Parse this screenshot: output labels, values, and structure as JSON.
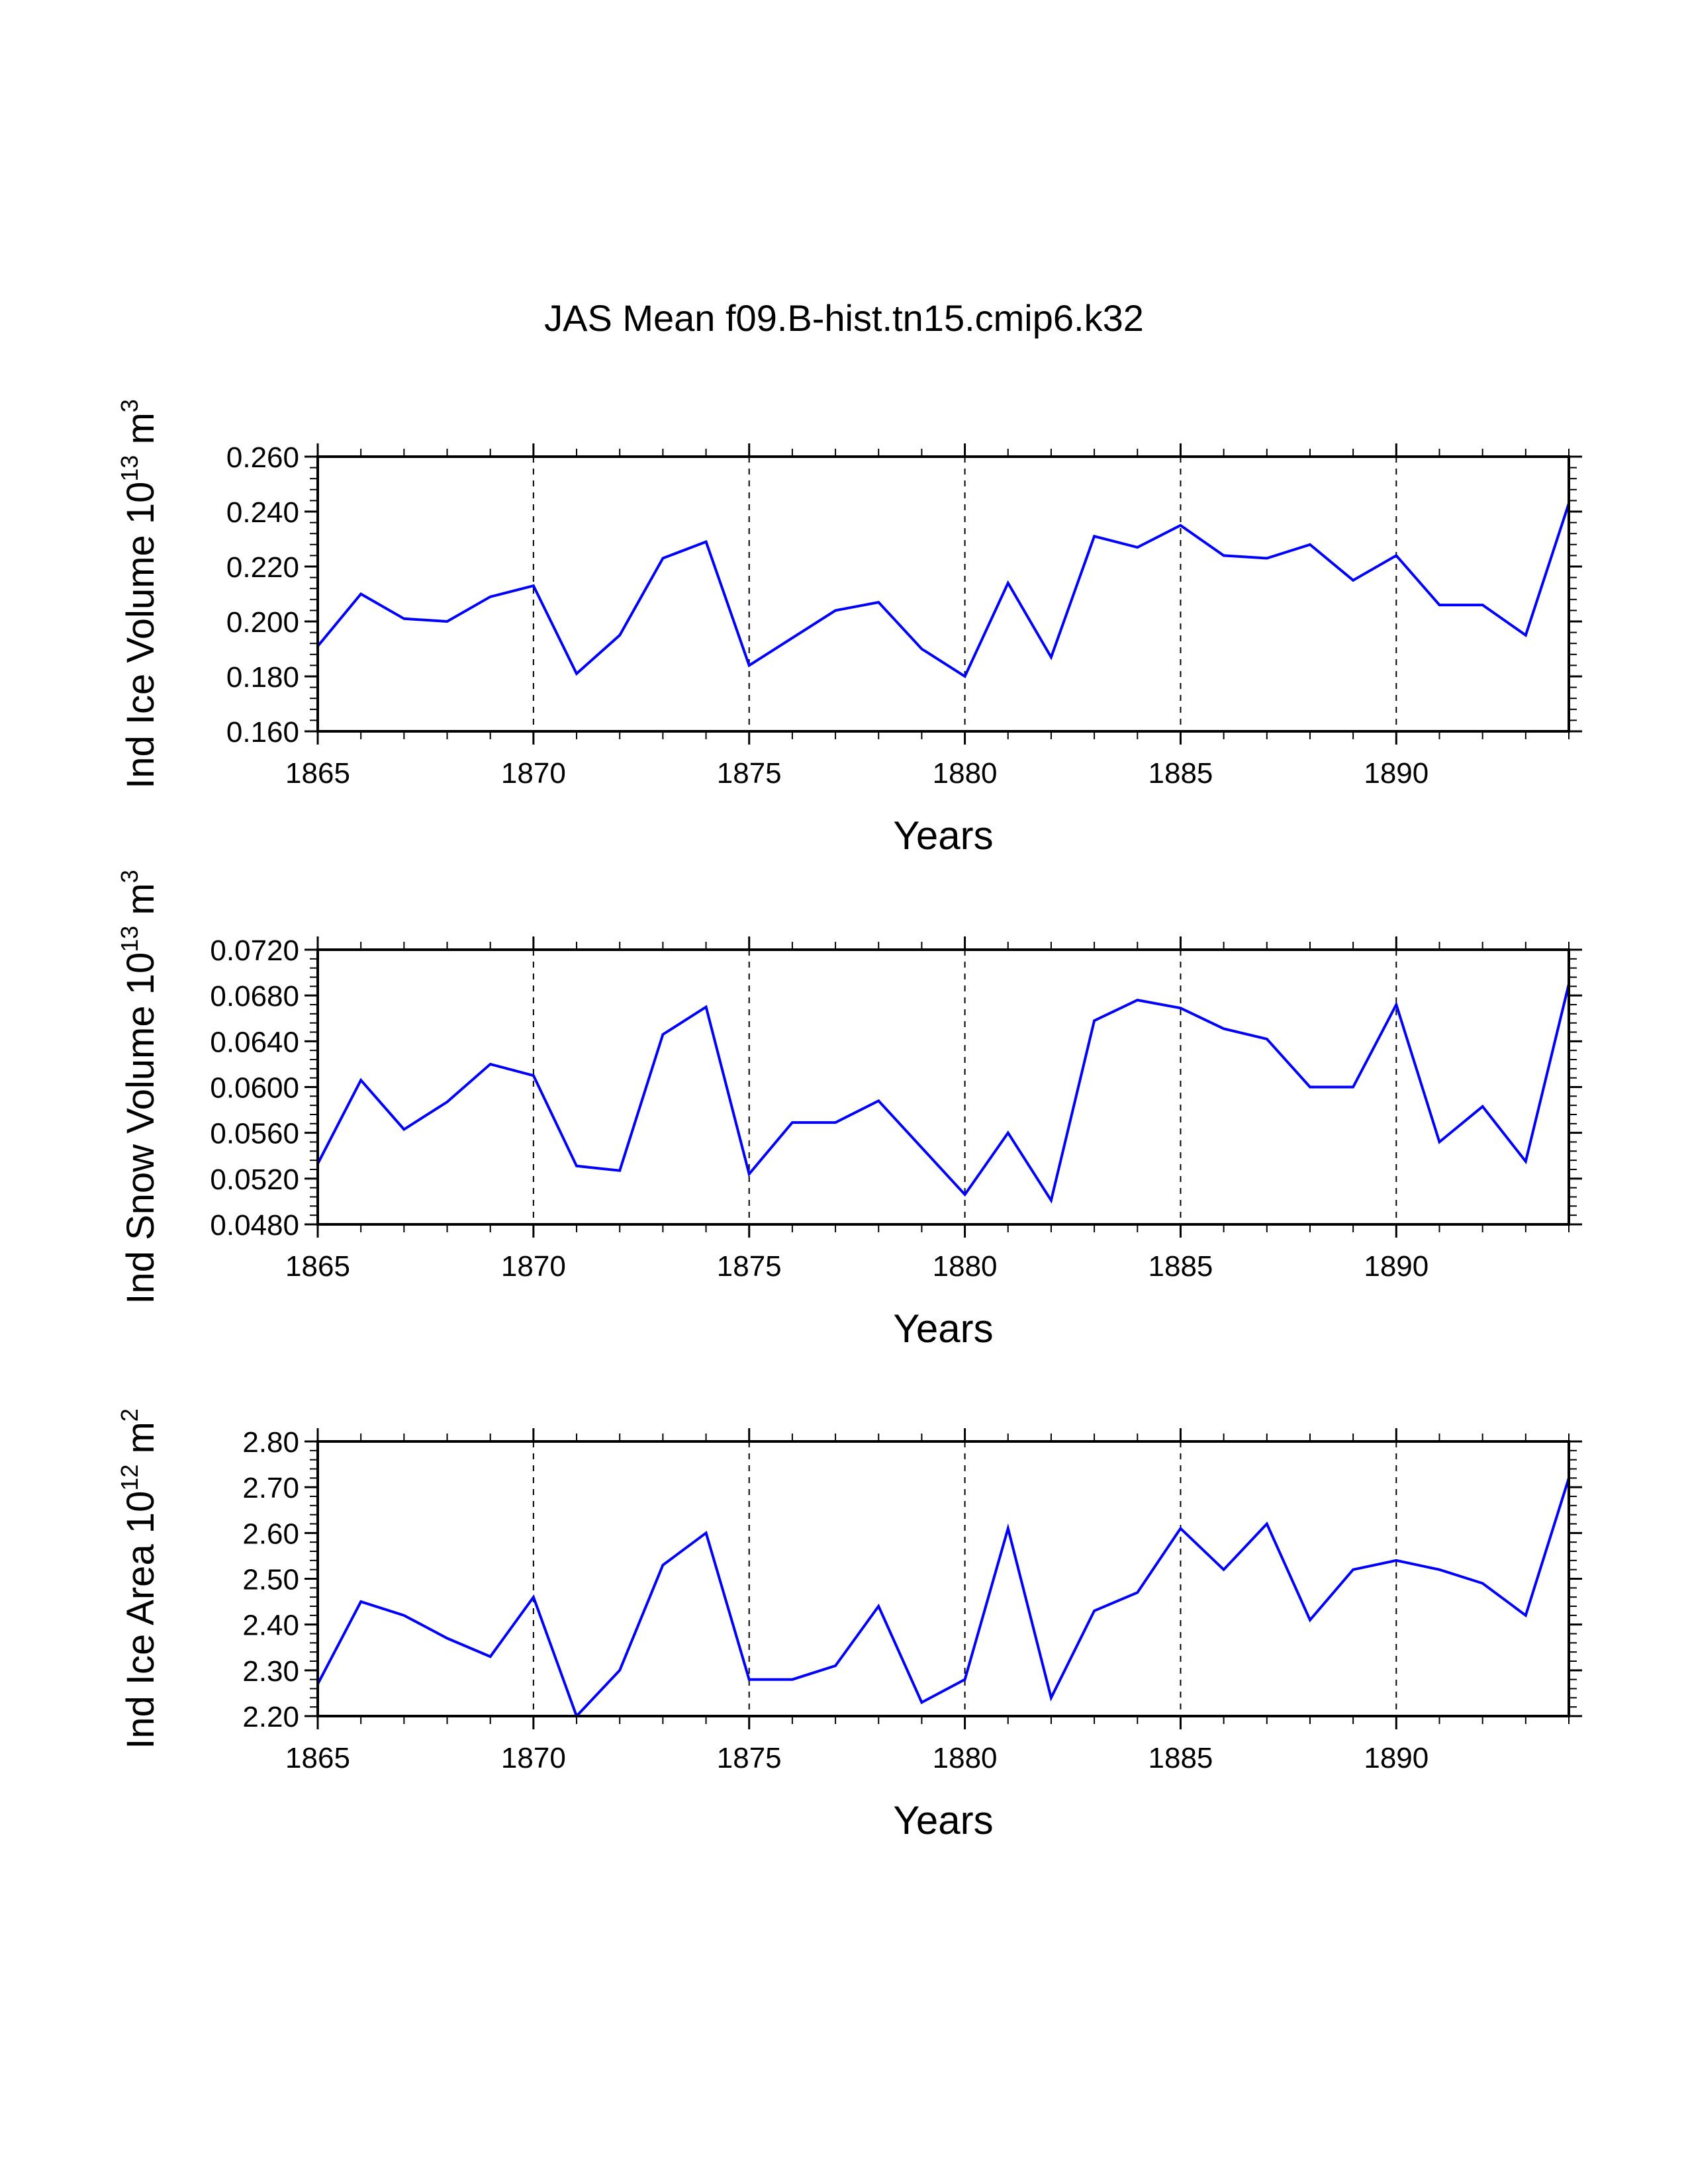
{
  "figure": {
    "title": "JAS Mean f09.B-hist.tn15.cmip6.k32"
  },
  "chart_data": [
    {
      "type": "line",
      "title": "JAS Mean f09.B-hist.tn15.cmip6.k32",
      "xlabel": "Years",
      "ylabel": {
        "text": "Ind Ice Volume 10",
        "exponent": "13",
        "unit": " m",
        "unit_exponent": "3"
      },
      "xlim": [
        1865,
        1894
      ],
      "ylim": [
        0.16,
        0.26
      ],
      "xticks": [
        1865,
        1870,
        1875,
        1880,
        1885,
        1890
      ],
      "yticks": [
        "0.160",
        "0.180",
        "0.200",
        "0.220",
        "0.240",
        "0.260"
      ],
      "grid": "vertical dashed at major x ticks",
      "series": [
        {
          "name": "Ind Ice Volume",
          "color": "#0000ff",
          "x": [
            1865,
            1866,
            1867,
            1868,
            1869,
            1870,
            1871,
            1872,
            1873,
            1874,
            1875,
            1876,
            1877,
            1878,
            1879,
            1880,
            1881,
            1882,
            1883,
            1884,
            1885,
            1886,
            1887,
            1888,
            1889,
            1890,
            1891,
            1892,
            1893,
            1894
          ],
          "y": [
            0.191,
            0.21,
            0.201,
            0.2,
            0.209,
            0.213,
            0.181,
            0.195,
            0.223,
            0.229,
            0.184,
            0.194,
            0.204,
            0.207,
            0.19,
            0.18,
            0.214,
            0.187,
            0.231,
            0.227,
            0.235,
            0.224,
            0.223,
            0.228,
            0.215,
            0.224,
            0.206,
            0.206,
            0.195,
            0.243
          ]
        }
      ]
    },
    {
      "type": "line",
      "xlabel": "Years",
      "ylabel": {
        "text": "Ind Snow Volume 10",
        "exponent": "13",
        "unit": " m",
        "unit_exponent": "3"
      },
      "xlim": [
        1865,
        1894
      ],
      "ylim": [
        0.048,
        0.072
      ],
      "xticks": [
        1865,
        1870,
        1875,
        1880,
        1885,
        1890
      ],
      "yticks": [
        "0.0480",
        "0.0520",
        "0.0560",
        "0.0600",
        "0.0640",
        "0.0680",
        "0.0720"
      ],
      "grid": "vertical dashed at major x ticks",
      "series": [
        {
          "name": "Ind Snow Volume",
          "color": "#0000ff",
          "x": [
            1865,
            1866,
            1867,
            1868,
            1869,
            1870,
            1871,
            1872,
            1873,
            1874,
            1875,
            1876,
            1877,
            1878,
            1879,
            1880,
            1881,
            1882,
            1883,
            1884,
            1885,
            1886,
            1887,
            1888,
            1889,
            1890,
            1891,
            1892,
            1893,
            1894
          ],
          "y": [
            0.0533,
            0.0606,
            0.0563,
            0.0587,
            0.062,
            0.061,
            0.0531,
            0.0527,
            0.0646,
            0.067,
            0.0524,
            0.0569,
            0.0569,
            0.0588,
            0.0547,
            0.0506,
            0.056,
            0.0501,
            0.0658,
            0.0676,
            0.0669,
            0.0651,
            0.0642,
            0.06,
            0.06,
            0.0672,
            0.0552,
            0.0583,
            0.0535,
            0.069
          ]
        }
      ]
    },
    {
      "type": "line",
      "xlabel": "Years",
      "ylabel": {
        "text": "Ind Ice Area 10",
        "exponent": "12",
        "unit": " m",
        "unit_exponent": "2"
      },
      "xlim": [
        1865,
        1894
      ],
      "ylim": [
        2.2,
        2.8
      ],
      "xticks": [
        1865,
        1870,
        1875,
        1880,
        1885,
        1890
      ],
      "yticks": [
        "2.20",
        "2.30",
        "2.40",
        "2.50",
        "2.60",
        "2.70",
        "2.80"
      ],
      "grid": "vertical dashed at major x ticks",
      "series": [
        {
          "name": "Ind Ice Area",
          "color": "#0000ff",
          "x": [
            1865,
            1866,
            1867,
            1868,
            1869,
            1870,
            1871,
            1872,
            1873,
            1874,
            1875,
            1876,
            1877,
            1878,
            1879,
            1880,
            1881,
            1882,
            1883,
            1884,
            1885,
            1886,
            1887,
            1888,
            1889,
            1890,
            1891,
            1892,
            1893,
            1894
          ],
          "y": [
            2.27,
            2.45,
            2.42,
            2.37,
            2.33,
            2.46,
            2.2,
            2.3,
            2.53,
            2.6,
            2.28,
            2.28,
            2.31,
            2.44,
            2.23,
            2.28,
            2.61,
            2.24,
            2.43,
            2.47,
            2.61,
            2.52,
            2.62,
            2.41,
            2.52,
            2.54,
            2.52,
            2.49,
            2.42,
            2.72
          ]
        }
      ]
    }
  ]
}
